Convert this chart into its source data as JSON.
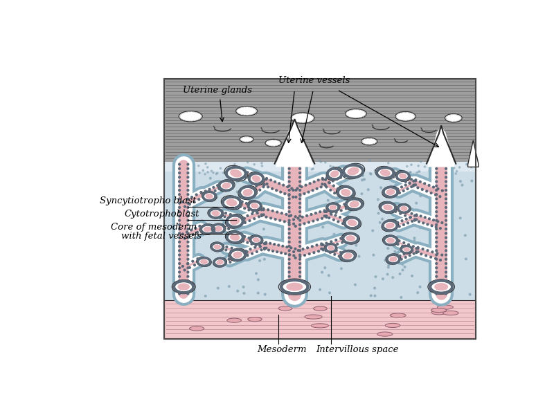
{
  "background_color": "#ffffff",
  "fig_width": 8.0,
  "fig_height": 6.0,
  "labels": {
    "uterine_glands": "Uterine glands",
    "uterine_vessels": "Uterine vessels",
    "syncytiotrophoblast": "Syncytiotropho blast",
    "cytotrophoblast": "Cytotrophoblast",
    "core_mesoderm_1": "Core of mesoderm",
    "core_mesoderm_2": "with fetal vessels",
    "mesoderm": "Mesoderm",
    "intervillous_space": "Intervillous space"
  },
  "colors": {
    "uterus_gray": "#9e9e9e",
    "uterus_line": "#6a6a6a",
    "blue_space": "#ccdde8",
    "blue_border": "#8aafc0",
    "pink_core": "#e8b4bc",
    "pink_mesoderm": "#f2c8cc",
    "white": "#ffffff",
    "outline": "#2a2a2a",
    "dot": "#5a6878",
    "stipple": "#7a9aaa"
  }
}
